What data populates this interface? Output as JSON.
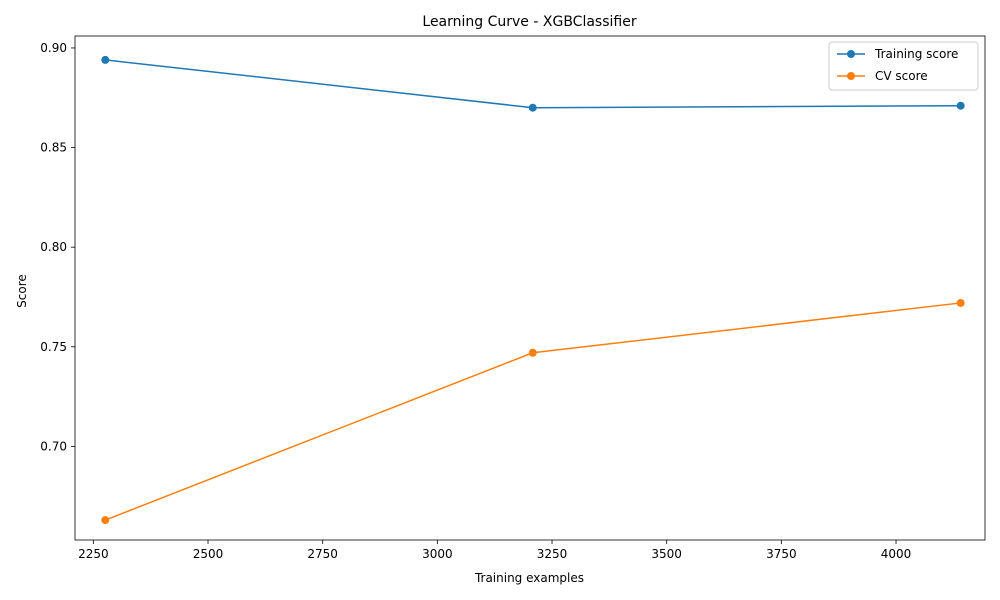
{
  "chart_data": {
    "type": "line",
    "title": "Learning Curve - XGBClassifier",
    "xlabel": "Training examples",
    "ylabel": "Score",
    "xlim": [
      2210,
      4194
    ],
    "ylim": [
      0.653,
      0.906
    ],
    "xticks": [
      2250,
      2500,
      2750,
      3000,
      3250,
      3500,
      3750,
      4000
    ],
    "xtick_labels": [
      "2250",
      "2500",
      "2750",
      "3000",
      "3250",
      "3500",
      "3750",
      "4000"
    ],
    "yticks": [
      0.7,
      0.75,
      0.8,
      0.85,
      0.9
    ],
    "ytick_labels": [
      "0.70",
      "0.75",
      "0.80",
      "0.85",
      "0.90"
    ],
    "x": [
      2276,
      3208,
      4141
    ],
    "series": [
      {
        "name": "Training score",
        "color": "#1f77b4",
        "values": [
          0.894,
          0.87,
          0.871
        ]
      },
      {
        "name": "CV score",
        "color": "#ff7f0e",
        "values": [
          0.663,
          0.747,
          0.772
        ]
      }
    ],
    "grid": false,
    "legend_position": "top-right"
  }
}
